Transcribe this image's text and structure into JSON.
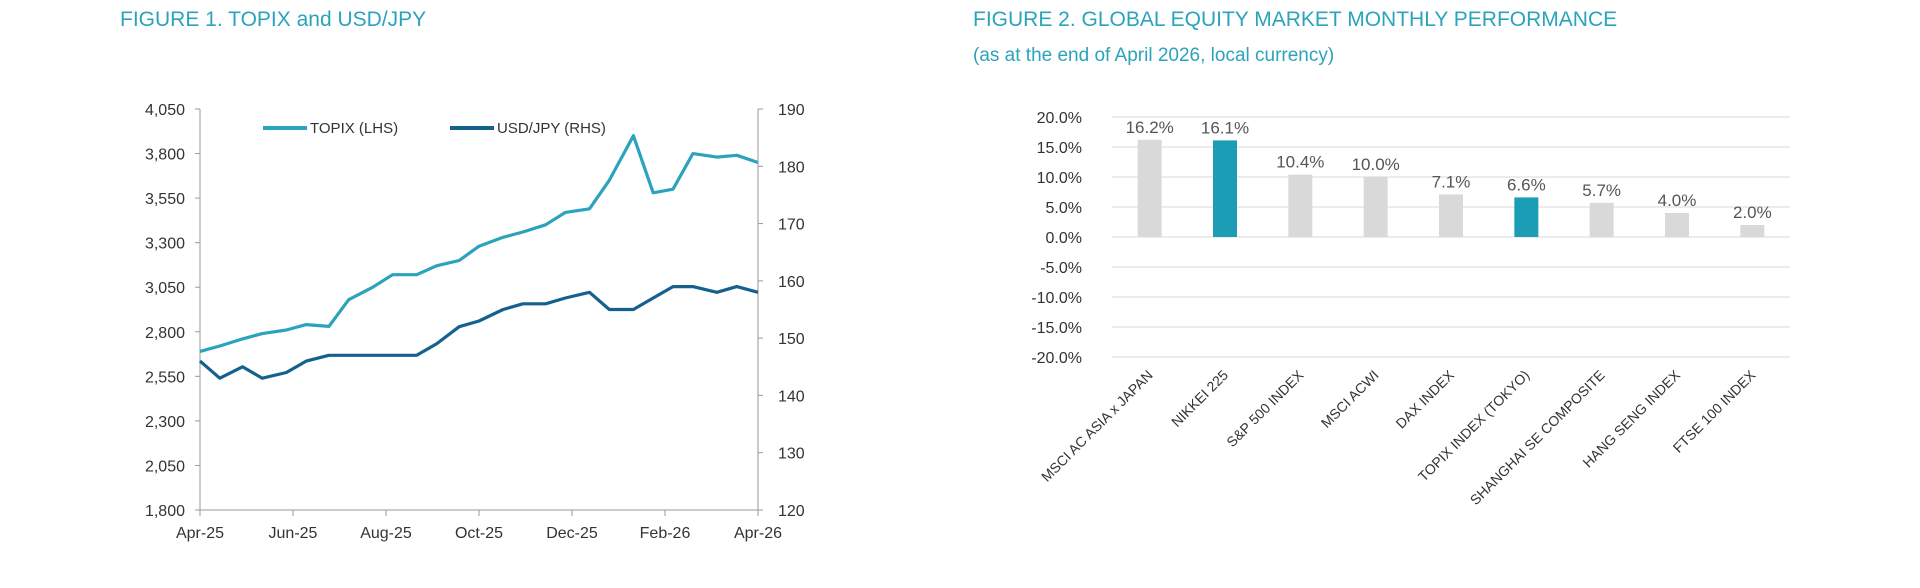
{
  "figure1": {
    "title": "FIGURE 1. TOPIX and USD/JPY"
  },
  "figure2": {
    "title": "FIGURE 2. GLOBAL EQUITY MARKET MONTHLY PERFORMANCE",
    "subtitle": "(as at the end of April 2026, local currency)"
  },
  "colors": {
    "topix": "#2ba3bd",
    "usdjpy": "#14618f",
    "highlight_bar": "#1a9db5",
    "normal_bar": "#d9d9d9",
    "grid": "#d9d9d9",
    "axis": "#9a9a9a"
  },
  "chart_data": [
    {
      "type": "line",
      "title": "FIGURE 1. TOPIX and USD/JPY",
      "x_ticks": [
        "Apr-25",
        "Jun-25",
        "Aug-25",
        "Oct-25",
        "Dec-25",
        "Feb-26",
        "Apr-26"
      ],
      "xlim": [
        "2025-04-01",
        "2026-04-30"
      ],
      "y_left_ticks": [
        "1,800",
        "2,050",
        "2,300",
        "2,550",
        "2,800",
        "3,050",
        "3,300",
        "3,550",
        "3,800",
        "4,050"
      ],
      "y_left_lim": [
        1800,
        4050
      ],
      "y_right_ticks": [
        "120",
        "130",
        "140",
        "150",
        "160",
        "170",
        "180",
        "190"
      ],
      "y_right_lim": [
        120,
        190
      ],
      "legend_position": "top-left",
      "grid": false,
      "series": [
        {
          "name": "TOPIX (LHS)",
          "axis": "left",
          "x": [
            "2025-04-01",
            "2025-04-15",
            "2025-05-01",
            "2025-05-15",
            "2025-06-01",
            "2025-06-15",
            "2025-07-01",
            "2025-07-15",
            "2025-08-01",
            "2025-08-15",
            "2025-09-01",
            "2025-09-15",
            "2025-10-01",
            "2025-10-15",
            "2025-11-01",
            "2025-11-15",
            "2025-12-01",
            "2025-12-15",
            "2026-01-01",
            "2026-01-15",
            "2026-02-01",
            "2026-02-15",
            "2026-03-01",
            "2026-03-15",
            "2026-04-01",
            "2026-04-15",
            "2026-04-30"
          ],
          "values": [
            2690,
            2720,
            2760,
            2790,
            2810,
            2840,
            2830,
            2980,
            3050,
            3120,
            3120,
            3170,
            3200,
            3280,
            3330,
            3360,
            3400,
            3470,
            3490,
            3650,
            3900,
            3580,
            3600,
            3800,
            3780,
            3790,
            3750
          ]
        },
        {
          "name": "USD/JPY (RHS)",
          "axis": "right",
          "x": [
            "2025-04-01",
            "2025-04-15",
            "2025-05-01",
            "2025-05-15",
            "2025-06-01",
            "2025-06-15",
            "2025-07-01",
            "2025-07-15",
            "2025-08-01",
            "2025-08-15",
            "2025-09-01",
            "2025-09-15",
            "2025-10-01",
            "2025-10-15",
            "2025-11-01",
            "2025-11-15",
            "2025-12-01",
            "2025-12-15",
            "2026-01-01",
            "2026-01-15",
            "2026-02-01",
            "2026-02-15",
            "2026-03-01",
            "2026-03-15",
            "2026-04-01",
            "2026-04-15",
            "2026-04-30"
          ],
          "values": [
            146,
            143,
            145,
            143,
            144,
            146,
            147,
            147,
            147,
            147,
            147,
            149,
            152,
            153,
            155,
            156,
            156,
            157,
            158,
            155,
            155,
            157,
            159,
            159,
            158,
            159,
            158
          ]
        }
      ]
    },
    {
      "type": "bar",
      "title": "FIGURE 2. GLOBAL EQUITY MARKET MONTHLY PERFORMANCE",
      "subtitle": "(as at the end of April 2026, local currency)",
      "categories": [
        "MSCI AC ASIA x JAPAN",
        "NIKKEI 225",
        "S&P 500 INDEX",
        "MSCI ACWI",
        "DAX INDEX",
        "TOPIX INDEX (TOKYO)",
        "SHANGHAI SE COMPOSITE",
        "HANG SENG INDEX",
        "FTSE 100 INDEX"
      ],
      "values": [
        16.2,
        16.1,
        10.4,
        10.0,
        7.1,
        6.6,
        5.7,
        4.0,
        2.0
      ],
      "data_labels": [
        "16.2%",
        "16.1%",
        "10.4%",
        "10.0%",
        "7.1%",
        "6.6%",
        "5.7%",
        "4.0%",
        "2.0%"
      ],
      "highlighted": [
        "NIKKEI 225",
        "TOPIX INDEX (TOKYO)"
      ],
      "y_ticks": [
        "20.0%",
        "15.0%",
        "10.0%",
        "5.0%",
        "0.0%",
        "-5.0%",
        "-10.0%",
        "-15.0%",
        "-20.0%"
      ],
      "ylim": [
        -20,
        20
      ],
      "grid": true
    }
  ]
}
